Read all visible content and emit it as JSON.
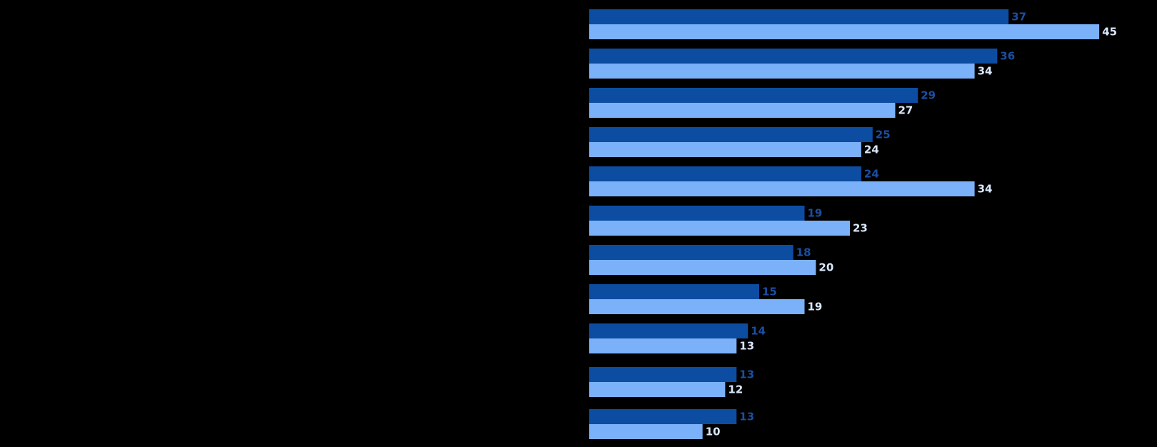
{
  "chart_data": {
    "type": "bar",
    "orientation": "horizontal",
    "title": "",
    "xlabel": "",
    "ylabel": "",
    "categories": [
      "",
      "",
      "",
      "",
      "",
      "",
      "",
      "",
      "",
      "",
      ""
    ],
    "xlim": [
      0,
      50
    ],
    "grid": false,
    "legend": "none",
    "series": [
      {
        "color": "#0c4da2",
        "label_color": "#1a4fa3",
        "values": [
          37,
          36,
          29,
          25,
          24,
          19,
          18,
          15,
          14,
          13,
          13
        ]
      },
      {
        "color": "#7ab1f9",
        "label_color": "#d9e8fb",
        "values": [
          45,
          34,
          27,
          24,
          34,
          23,
          20,
          19,
          13,
          12,
          10
        ]
      }
    ]
  }
}
